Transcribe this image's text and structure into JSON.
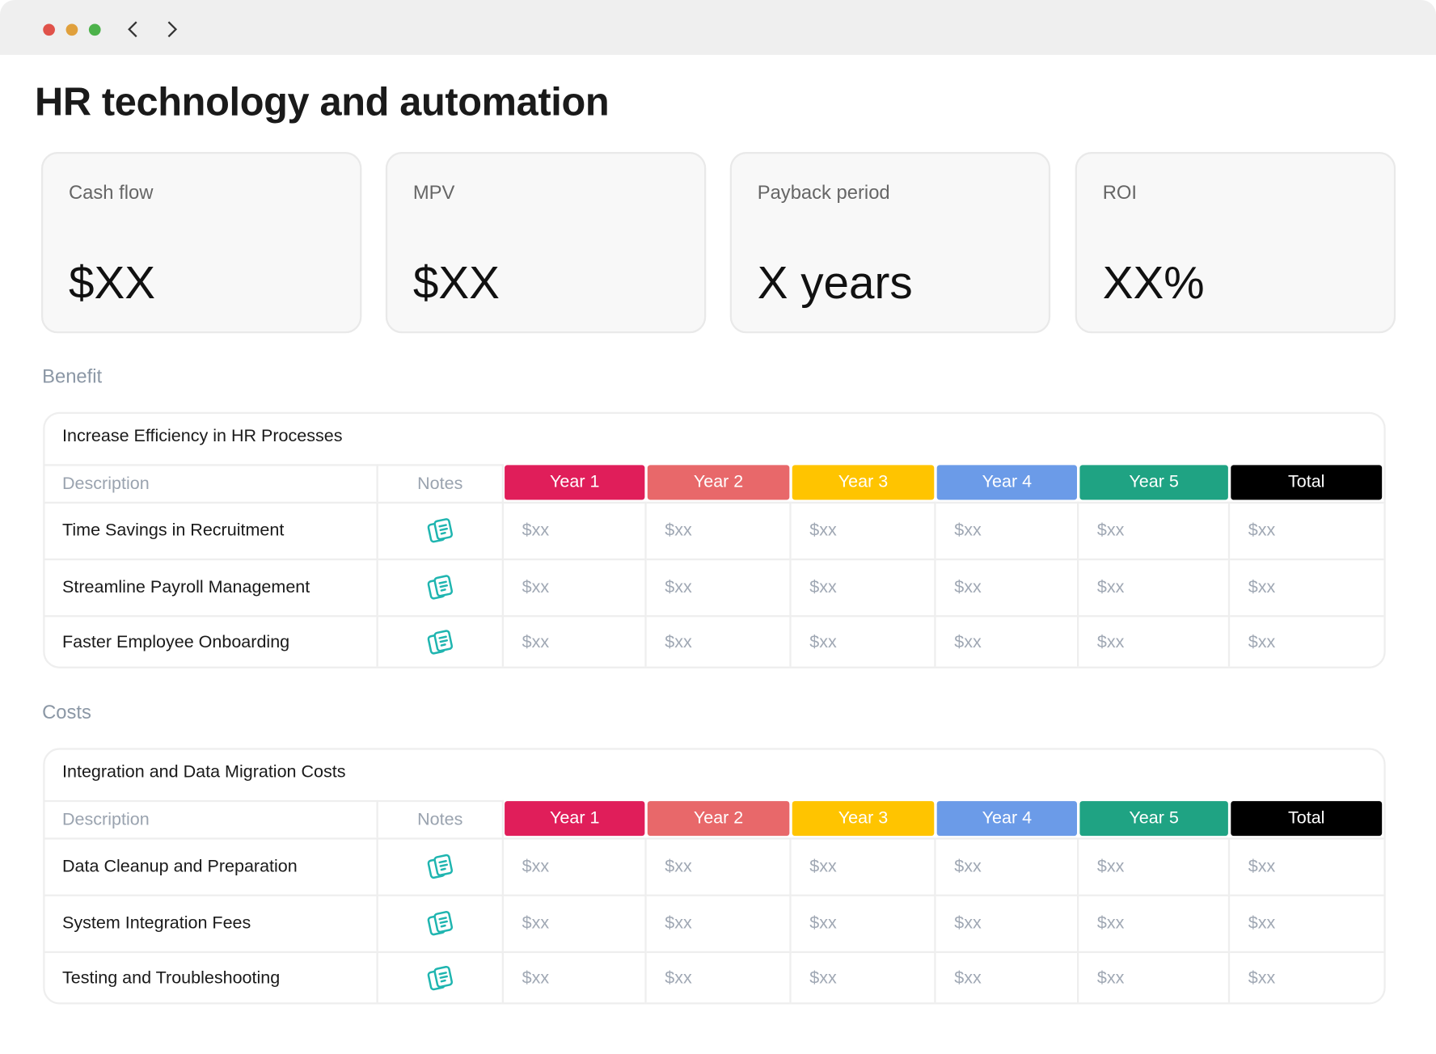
{
  "header": {
    "title": "HR technology and automation"
  },
  "kpis": [
    {
      "label": "Cash flow",
      "value": "$XX"
    },
    {
      "label": "MPV",
      "value": "$XX"
    },
    {
      "label": "Payback period",
      "value": "X years"
    },
    {
      "label": "ROI",
      "value": "XX%"
    }
  ],
  "sections": [
    {
      "heading": "Benefit",
      "table": {
        "title": "Increase Efficiency in HR Processes",
        "columns": [
          "Description",
          "Notes",
          "Year 1",
          "Year 2",
          "Year 3",
          "Year 4",
          "Year 5",
          "Total"
        ],
        "rows": [
          {
            "description": "Time Savings in Recruitment",
            "cells": [
              "$xx",
              "$xx",
              "$xx",
              "$xx",
              "$xx",
              "$xx"
            ]
          },
          {
            "description": "Streamline Payroll Management",
            "cells": [
              "$xx",
              "$xx",
              "$xx",
              "$xx",
              "$xx",
              "$xx"
            ]
          },
          {
            "description": "Faster Employee Onboarding",
            "cells": [
              "$xx",
              "$xx",
              "$xx",
              "$xx",
              "$xx",
              "$xx"
            ]
          }
        ]
      }
    },
    {
      "heading": "Costs",
      "table": {
        "title": "Integration and Data Migration Costs",
        "columns": [
          "Description",
          "Notes",
          "Year 1",
          "Year 2",
          "Year 3",
          "Year 4",
          "Year 5",
          "Total"
        ],
        "rows": [
          {
            "description": "Data Cleanup and Preparation",
            "cells": [
              "$xx",
              "$xx",
              "$xx",
              "$xx",
              "$xx",
              "$xx"
            ]
          },
          {
            "description": "System Integration Fees",
            "cells": [
              "$xx",
              "$xx",
              "$xx",
              "$xx",
              "$xx",
              "$xx"
            ]
          },
          {
            "description": "Testing and Troubleshooting",
            "cells": [
              "$xx",
              "$xx",
              "$xx",
              "$xx",
              "$xx",
              "$xx"
            ]
          }
        ]
      }
    }
  ]
}
